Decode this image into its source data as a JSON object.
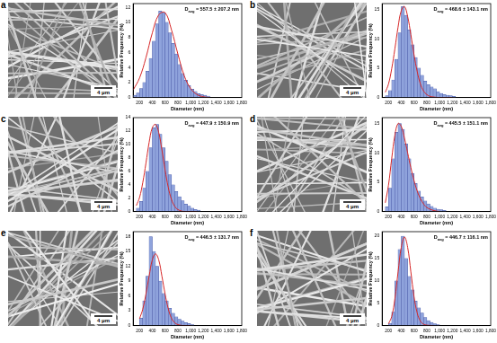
{
  "chart_data": [
    {
      "type": "histogram",
      "panel": "a",
      "scale_bar": "4 μm",
      "x_label": "Diameter (nm)",
      "y_label": "Relative Frequency (%)",
      "annotation": {
        "main": "D",
        "sub": "avg",
        "rest": "= 557.5 ± 207.2 nm"
      },
      "bins": [
        100,
        150,
        200,
        250,
        300,
        350,
        400,
        450,
        500,
        550,
        600,
        650,
        700,
        750,
        800,
        850,
        900,
        950,
        1000,
        1050,
        1100,
        1150,
        1200,
        1250,
        1300
      ],
      "values": [
        0.3,
        0.6,
        1.2,
        2.0,
        3.5,
        5.2,
        7.5,
        9.8,
        11.5,
        11.3,
        10.0,
        8.6,
        7.2,
        5.8,
        4.4,
        3.2,
        2.3,
        1.6,
        1.1,
        0.8,
        0.5,
        0.4,
        0.3,
        0.2
      ],
      "color": "#8fa3dc",
      "fit": {
        "color": "#d62728",
        "x": [
          100,
          200,
          300,
          400,
          500,
          600,
          700,
          800,
          900,
          1000,
          1100,
          1200,
          1300
        ],
        "values": [
          1.0,
          2.6,
          5.3,
          8.6,
          11.0,
          11.3,
          9.0,
          5.8,
          2.9,
          1.2,
          0.4,
          0.1,
          0.0
        ]
      },
      "xlim": [
        100,
        1800
      ],
      "xticks": [
        200,
        400,
        600,
        800,
        1000,
        1200,
        1400,
        1600,
        1800
      ],
      "ylim": [
        0,
        12.5
      ],
      "yticks": [
        0,
        2,
        4,
        6,
        8,
        10,
        12
      ],
      "grid": false
    },
    {
      "type": "histogram",
      "panel": "b",
      "scale_bar": "4 μm",
      "x_label": "Diameter (nm)",
      "y_label": "Relative Frequency (%)",
      "annotation": {
        "main": "D",
        "sub": "avg",
        "rest": "= 468.6 ± 143.1 nm"
      },
      "bins": [
        150,
        200,
        250,
        300,
        350,
        400,
        450,
        500,
        550,
        600,
        650,
        700,
        750,
        800,
        850,
        900,
        950,
        1000,
        1050,
        1100,
        1150,
        1200,
        1250
      ],
      "values": [
        0.3,
        1.2,
        3.0,
        6.5,
        11.0,
        15.5,
        14.0,
        11.5,
        9.0,
        6.8,
        5.0,
        3.8,
        2.8,
        2.2,
        1.8,
        1.5,
        1.0,
        0.7,
        0.5,
        0.4,
        0.3,
        0.2
      ],
      "color": "#8fa3dc",
      "fit": {
        "color": "#d62728",
        "x": [
          150,
          200,
          250,
          300,
          350,
          400,
          450,
          500,
          550,
          600,
          650,
          700,
          750,
          800,
          850,
          900,
          1000,
          1200
        ],
        "values": [
          0.9,
          2.3,
          4.9,
          8.3,
          12.0,
          14.8,
          15.5,
          13.8,
          10.7,
          7.3,
          4.4,
          2.3,
          1.1,
          0.5,
          0.2,
          0.1,
          0.0,
          0.0
        ]
      },
      "xlim": [
        100,
        1800
      ],
      "xticks": [
        200,
        400,
        600,
        800,
        1000,
        1200,
        1400,
        1600,
        1800
      ],
      "ylim": [
        0,
        16
      ],
      "yticks": [
        0,
        5,
        10,
        15
      ],
      "grid": false
    },
    {
      "type": "histogram",
      "panel": "c",
      "scale_bar": "4 μm",
      "x_label": "Diameter (nm)",
      "y_label": "Relative Frequency (%)",
      "annotation": {
        "main": "D",
        "sub": "avg",
        "rest": "= 447.9 ± 150.9 nm"
      },
      "bins": [
        150,
        200,
        250,
        300,
        350,
        400,
        450,
        500,
        550,
        600,
        650,
        700,
        750,
        800,
        850,
        900,
        950,
        1000,
        1050,
        1100,
        1150
      ],
      "values": [
        0.5,
        1.5,
        3.5,
        6.0,
        9.5,
        12.5,
        13.0,
        11.5,
        9.5,
        7.5,
        5.5,
        4.0,
        3.0,
        2.2,
        1.6,
        1.1,
        0.8,
        0.5,
        0.3,
        0.2
      ],
      "color": "#8fa3dc",
      "fit": {
        "color": "#d62728",
        "x": [
          150,
          200,
          250,
          300,
          350,
          400,
          450,
          500,
          550,
          600,
          650,
          700,
          750,
          800,
          900,
          1100
        ],
        "values": [
          0.9,
          2.1,
          4.3,
          7.2,
          10.3,
          12.5,
          13.0,
          11.8,
          9.2,
          6.2,
          3.6,
          1.8,
          0.8,
          0.3,
          0.0,
          0.0
        ]
      },
      "xlim": [
        100,
        1800
      ],
      "xticks": [
        200,
        400,
        600,
        800,
        1000,
        1200,
        1400,
        1600,
        1800
      ],
      "ylim": [
        0,
        14
      ],
      "yticks": [
        0,
        2,
        4,
        6,
        8,
        10,
        12,
        14
      ],
      "grid": false
    },
    {
      "type": "histogram",
      "panel": "d",
      "scale_bar": "4 μm",
      "x_label": "Diameter (nm)",
      "y_label": "Relative Frequency (%)",
      "annotation": {
        "main": "D",
        "sub": "avg",
        "rest": "= 445.5 ± 151.1 nm"
      },
      "bins": [
        150,
        200,
        250,
        300,
        350,
        400,
        450,
        500,
        550,
        600,
        650,
        700,
        750,
        800,
        850,
        900,
        950,
        1000,
        1050,
        1100
      ],
      "values": [
        0.8,
        4.0,
        9.0,
        13.5,
        15.0,
        14.0,
        11.5,
        9.0,
        6.5,
        4.8,
        3.5,
        2.5,
        1.8,
        1.3,
        0.9,
        0.6,
        0.4,
        0.3,
        0.2
      ],
      "color": "#8fa3dc",
      "fit": {
        "color": "#d62728",
        "x": [
          150,
          200,
          250,
          300,
          350,
          400,
          450,
          500,
          550,
          600,
          650,
          700,
          750,
          800,
          900,
          1000
        ],
        "values": [
          1.5,
          4.5,
          9.0,
          13.0,
          15.0,
          14.5,
          12.5,
          10.0,
          7.5,
          5.3,
          3.5,
          2.2,
          1.3,
          0.7,
          0.2,
          0.0
        ]
      },
      "xlim": [
        100,
        1800
      ],
      "xticks": [
        200,
        400,
        600,
        800,
        1000,
        1200,
        1400,
        1600,
        1800
      ],
      "ylim": [
        0,
        16
      ],
      "yticks": [
        0,
        5,
        10,
        15
      ],
      "grid": false
    },
    {
      "type": "histogram",
      "panel": "e",
      "scale_bar": "4 μm",
      "x_label": "Diameter (nm)",
      "y_label": "Relative Frequency (%)",
      "annotation": {
        "main": "D",
        "sub": "avg",
        "rest": "= 446.5 ± 131.7 nm"
      },
      "bins": [
        200,
        250,
        300,
        350,
        400,
        450,
        500,
        550,
        600,
        650,
        700,
        750,
        800,
        850,
        900,
        950,
        1000,
        1050
      ],
      "values": [
        1.5,
        5.0,
        10.0,
        18.0,
        15.0,
        12.0,
        9.0,
        6.5,
        5.0,
        3.5,
        2.5,
        1.8,
        1.3,
        0.9,
        0.6,
        0.4,
        0.2
      ],
      "color": "#8fa3dc",
      "fit": {
        "color": "#d62728",
        "x": [
          200,
          250,
          300,
          350,
          400,
          450,
          500,
          550,
          600,
          650,
          700,
          750,
          800,
          900,
          1000
        ],
        "values": [
          1.4,
          3.3,
          6.4,
          10.0,
          13.3,
          14.5,
          13.3,
          10.0,
          6.4,
          3.4,
          1.5,
          0.6,
          0.2,
          0.0,
          0.0
        ]
      },
      "xlim": [
        100,
        1800
      ],
      "xticks": [
        200,
        400,
        600,
        800,
        1000,
        1200,
        1400,
        1600,
        1800
      ],
      "ylim": [
        0,
        19
      ],
      "yticks": [
        0,
        3,
        6,
        9,
        12,
        15,
        18
      ],
      "grid": false
    },
    {
      "type": "histogram",
      "panel": "f",
      "scale_bar": "4 μm",
      "x_label": "Diameter (nm)",
      "y_label": "Relative Frequency (%)",
      "annotation": {
        "main": "D",
        "sub": "avg",
        "rest": "= 446.7 ± 116.1 nm"
      },
      "bins": [
        200,
        250,
        300,
        350,
        400,
        450,
        500,
        550,
        600,
        650,
        700,
        750,
        800,
        850,
        900,
        950,
        1000
      ],
      "values": [
        0.5,
        3.0,
        10.0,
        17.0,
        20.0,
        15.0,
        11.0,
        8.0,
        5.5,
        4.0,
        2.8,
        1.8,
        1.1,
        0.7,
        0.4,
        0.2
      ],
      "color": "#8fa3dc",
      "fit": {
        "color": "#d62728",
        "x": [
          200,
          250,
          300,
          350,
          400,
          450,
          500,
          550,
          600,
          650,
          700,
          750,
          800,
          900
        ],
        "values": [
          0.4,
          2.0,
          6.0,
          12.0,
          17.5,
          19.8,
          17.5,
          12.0,
          6.5,
          2.8,
          1.0,
          0.3,
          0.1,
          0.0
        ]
      },
      "xlim": [
        100,
        1800
      ],
      "xticks": [
        200,
        400,
        600,
        800,
        1000,
        1200,
        1400,
        1600,
        1800
      ],
      "ylim": [
        0,
        21
      ],
      "yticks": [
        0,
        5,
        10,
        15,
        20
      ],
      "grid": false
    }
  ]
}
